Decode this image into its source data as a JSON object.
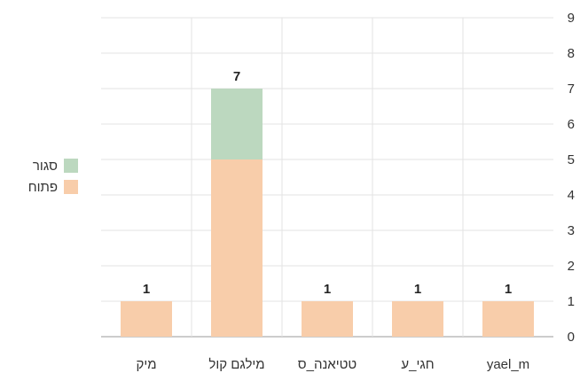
{
  "chart_data": {
    "type": "bar",
    "stacked": true,
    "categories": [
      "מיק",
      "מילגם קול",
      "טטיאנה_ס",
      "חגי_ע",
      "yael_m"
    ],
    "series": [
      {
        "name": "פתוח",
        "color": "#f8cdaa",
        "values": [
          1,
          5,
          1,
          1,
          1
        ]
      },
      {
        "name": "סגור",
        "color": "#bcd8bf",
        "values": [
          0,
          2,
          0,
          0,
          0
        ]
      }
    ],
    "totals": [
      1,
      7,
      1,
      1,
      1
    ],
    "ylim": [
      0,
      9
    ],
    "yticks": [
      0,
      1,
      2,
      3,
      4,
      5,
      6,
      7,
      8,
      9
    ],
    "y_axis_side": "right",
    "grid": true,
    "legend_position": "left",
    "legend": [
      {
        "label": "סגור",
        "color": "#bcd8bf"
      },
      {
        "label": "פתוח",
        "color": "#f8cdaa"
      }
    ]
  }
}
